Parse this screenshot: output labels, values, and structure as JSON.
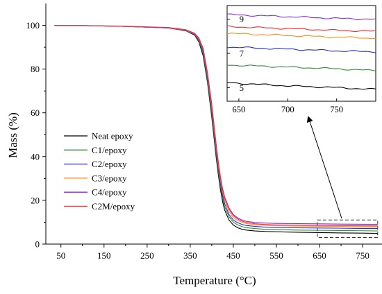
{
  "chart_data": {
    "type": "line",
    "xlabel": "Temperature (°C)",
    "ylabel": "Mass (%)",
    "xlim": [
      15,
      795
    ],
    "ylim": [
      0,
      110
    ],
    "xticks": [
      50,
      150,
      250,
      350,
      450,
      550,
      650,
      750
    ],
    "yticks": [
      0,
      20,
      40,
      60,
      80,
      100
    ],
    "legend_position": "center-left",
    "grid": false,
    "zoom_box": {
      "x": [
        645,
        785
      ],
      "y": [
        3,
        11
      ]
    },
    "series": [
      {
        "name": "Neat epoxy",
        "color": "#000000",
        "x": [
          35,
          100,
          200,
          300,
          340,
          360,
          370,
          380,
          390,
          400,
          405,
          410,
          415,
          420,
          425,
          430,
          440,
          450,
          460,
          470,
          480,
          500,
          520,
          550,
          600,
          650,
          700,
          750,
          785
        ],
        "y": [
          100,
          99.9,
          99.5,
          98.8,
          97.5,
          95.5,
          92.5,
          86,
          74,
          58,
          49,
          40,
          32,
          25,
          19.5,
          15.5,
          11,
          8.7,
          7.5,
          6.8,
          6.4,
          6.0,
          5.8,
          5.6,
          5.4,
          5.25,
          5.1,
          5.0,
          4.9
        ]
      },
      {
        "name": "C1/epoxy",
        "color": "#2e8b3a",
        "x": [
          35,
          100,
          200,
          300,
          340,
          360,
          370,
          380,
          390,
          400,
          405,
          410,
          415,
          420,
          425,
          430,
          440,
          450,
          460,
          470,
          480,
          500,
          520,
          550,
          600,
          650,
          700,
          750,
          785
        ],
        "y": [
          100,
          99.9,
          99.5,
          98.8,
          97.6,
          95.7,
          93,
          87,
          75,
          59.5,
          50.5,
          41.5,
          33.5,
          26.5,
          21,
          17,
          12.5,
          10,
          8.8,
          8.0,
          7.5,
          7.1,
          6.8,
          6.6,
          6.4,
          6.3,
          6.2,
          6.1,
          6.0
        ]
      },
      {
        "name": "C2/epoxy",
        "color": "#2a2ad8",
        "x": [
          35,
          100,
          200,
          300,
          340,
          360,
          370,
          380,
          390,
          400,
          405,
          410,
          415,
          420,
          425,
          430,
          440,
          450,
          460,
          470,
          480,
          500,
          520,
          550,
          600,
          650,
          700,
          750,
          785
        ],
        "y": [
          100,
          99.9,
          99.5,
          98.8,
          97.7,
          95.9,
          93.5,
          88,
          76.5,
          61,
          52,
          43,
          35,
          28,
          22.5,
          18.5,
          13.5,
          11,
          9.8,
          9.0,
          8.5,
          8.1,
          7.8,
          7.6,
          7.45,
          7.35,
          7.25,
          7.15,
          7.1
        ]
      },
      {
        "name": "C3/epoxy",
        "color": "#ff8c1a",
        "x": [
          35,
          100,
          200,
          300,
          340,
          360,
          370,
          380,
          390,
          400,
          405,
          410,
          415,
          420,
          425,
          430,
          440,
          450,
          460,
          470,
          480,
          500,
          520,
          550,
          600,
          650,
          700,
          750,
          785
        ],
        "y": [
          100,
          99.9,
          99.5,
          98.9,
          97.8,
          96.1,
          93.8,
          88.8,
          77.5,
          62.5,
          53.5,
          44.5,
          36.5,
          29.5,
          24,
          20,
          15,
          12,
          10.8,
          10.0,
          9.4,
          8.9,
          8.6,
          8.4,
          8.25,
          8.15,
          8.05,
          7.95,
          7.9
        ]
      },
      {
        "name": "C4/epoxy",
        "color": "#8a2be2",
        "x": [
          35,
          100,
          200,
          300,
          340,
          360,
          370,
          380,
          390,
          400,
          405,
          410,
          415,
          420,
          425,
          430,
          440,
          450,
          460,
          470,
          480,
          500,
          520,
          550,
          600,
          650,
          700,
          750,
          785
        ],
        "y": [
          100,
          99.9,
          99.6,
          99.0,
          98.0,
          96.4,
          94.3,
          89.5,
          78.5,
          64,
          55,
          46,
          38,
          31,
          25.5,
          21.5,
          16.5,
          13.5,
          12,
          11.0,
          10.4,
          9.9,
          9.6,
          9.45,
          9.35,
          9.25,
          9.15,
          9.05,
          9.0
        ]
      },
      {
        "name": "C2M/epoxy",
        "color": "#ff2a2a",
        "x": [
          35,
          100,
          200,
          300,
          340,
          360,
          370,
          380,
          390,
          400,
          405,
          410,
          415,
          420,
          425,
          430,
          440,
          450,
          460,
          470,
          480,
          500,
          520,
          550,
          600,
          650,
          700,
          750,
          785
        ],
        "y": [
          100,
          99.9,
          99.5,
          98.9,
          97.9,
          96.2,
          94,
          89,
          78,
          63.5,
          54.5,
          45.5,
          37.5,
          30.5,
          25,
          21,
          16,
          13,
          11.5,
          10.5,
          9.9,
          9.3,
          9.0,
          8.8,
          8.65,
          8.55,
          8.45,
          8.35,
          8.3
        ]
      }
    ],
    "inset": {
      "xlim": [
        638,
        790
      ],
      "ylim": [
        4.2,
        9.8
      ],
      "xticks": [
        650,
        700,
        750
      ],
      "yticks": [
        5,
        7,
        9
      ]
    }
  }
}
